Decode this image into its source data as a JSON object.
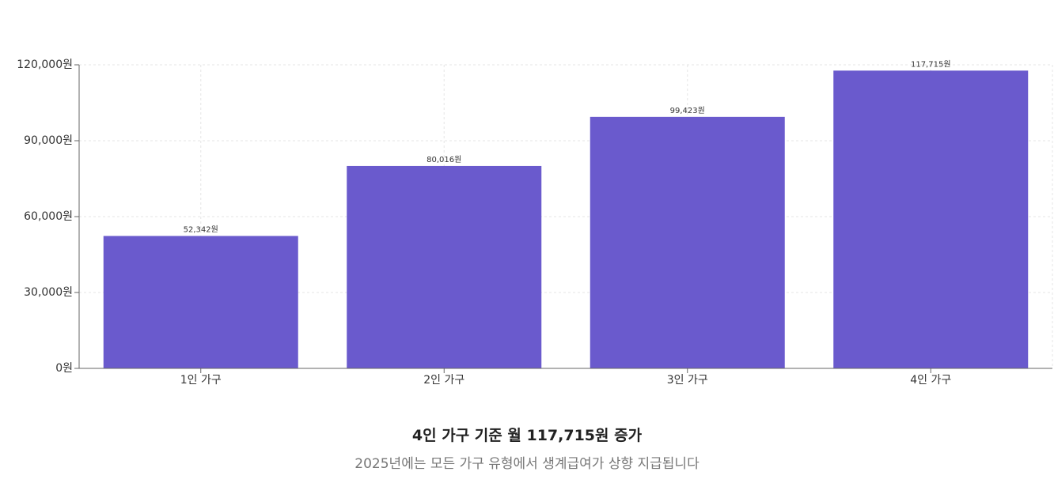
{
  "chart_data": {
    "type": "bar",
    "categories": [
      "1인 가구",
      "2인 가구",
      "3인 가구",
      "4인 가구"
    ],
    "values": [
      52342,
      80016,
      99423,
      117715
    ],
    "value_labels": [
      "52,342원",
      "80,016원",
      "99,423원",
      "117,715원"
    ],
    "y_ticks": [
      0,
      30000,
      60000,
      90000,
      120000
    ],
    "y_tick_labels": [
      "0원",
      "30,000원",
      "60,000원",
      "90,000원",
      "120,000원"
    ],
    "ylim": [
      0,
      120000
    ],
    "grid": true,
    "bar_color": "#6a5acd",
    "title": "",
    "xlabel": "",
    "ylabel": ""
  },
  "summary": {
    "headline": "4인 가구 기준 월 117,715원 증가",
    "subline": "2025년에는 모든 가구 유형에서 생계급여가 상향 지급됩니다"
  }
}
